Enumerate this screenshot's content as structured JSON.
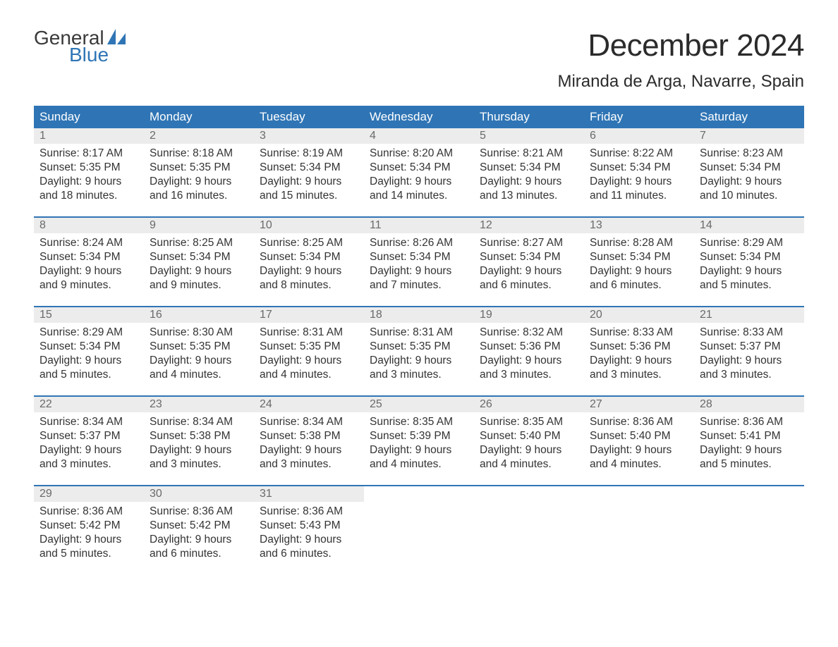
{
  "logo": {
    "word1": "General",
    "word2": "Blue"
  },
  "title": "December 2024",
  "location": "Miranda de Arga, Navarre, Spain",
  "style": {
    "header_bg": "#2f75b5",
    "header_fg": "#ffffff",
    "daynum_bg": "#ececec",
    "daynum_fg": "#6a6a6a",
    "body_fg": "#333333",
    "sep_color": "#2f75b5",
    "logo_gray": "#3a3a3a",
    "logo_blue": "#2f75b5",
    "title_fontsize": 44,
    "location_fontsize": 24,
    "header_fontsize": 17,
    "cell_fontsize": 15.5,
    "page_bg": "#ffffff"
  },
  "day_headers": [
    "Sunday",
    "Monday",
    "Tuesday",
    "Wednesday",
    "Thursday",
    "Friday",
    "Saturday"
  ],
  "weeks": [
    [
      {
        "n": "1",
        "sunrise": "Sunrise: 8:17 AM",
        "sunset": "Sunset: 5:35 PM",
        "d1": "Daylight: 9 hours",
        "d2": "and 18 minutes."
      },
      {
        "n": "2",
        "sunrise": "Sunrise: 8:18 AM",
        "sunset": "Sunset: 5:35 PM",
        "d1": "Daylight: 9 hours",
        "d2": "and 16 minutes."
      },
      {
        "n": "3",
        "sunrise": "Sunrise: 8:19 AM",
        "sunset": "Sunset: 5:34 PM",
        "d1": "Daylight: 9 hours",
        "d2": "and 15 minutes."
      },
      {
        "n": "4",
        "sunrise": "Sunrise: 8:20 AM",
        "sunset": "Sunset: 5:34 PM",
        "d1": "Daylight: 9 hours",
        "d2": "and 14 minutes."
      },
      {
        "n": "5",
        "sunrise": "Sunrise: 8:21 AM",
        "sunset": "Sunset: 5:34 PM",
        "d1": "Daylight: 9 hours",
        "d2": "and 13 minutes."
      },
      {
        "n": "6",
        "sunrise": "Sunrise: 8:22 AM",
        "sunset": "Sunset: 5:34 PM",
        "d1": "Daylight: 9 hours",
        "d2": "and 11 minutes."
      },
      {
        "n": "7",
        "sunrise": "Sunrise: 8:23 AM",
        "sunset": "Sunset: 5:34 PM",
        "d1": "Daylight: 9 hours",
        "d2": "and 10 minutes."
      }
    ],
    [
      {
        "n": "8",
        "sunrise": "Sunrise: 8:24 AM",
        "sunset": "Sunset: 5:34 PM",
        "d1": "Daylight: 9 hours",
        "d2": "and 9 minutes."
      },
      {
        "n": "9",
        "sunrise": "Sunrise: 8:25 AM",
        "sunset": "Sunset: 5:34 PM",
        "d1": "Daylight: 9 hours",
        "d2": "and 9 minutes."
      },
      {
        "n": "10",
        "sunrise": "Sunrise: 8:25 AM",
        "sunset": "Sunset: 5:34 PM",
        "d1": "Daylight: 9 hours",
        "d2": "and 8 minutes."
      },
      {
        "n": "11",
        "sunrise": "Sunrise: 8:26 AM",
        "sunset": "Sunset: 5:34 PM",
        "d1": "Daylight: 9 hours",
        "d2": "and 7 minutes."
      },
      {
        "n": "12",
        "sunrise": "Sunrise: 8:27 AM",
        "sunset": "Sunset: 5:34 PM",
        "d1": "Daylight: 9 hours",
        "d2": "and 6 minutes."
      },
      {
        "n": "13",
        "sunrise": "Sunrise: 8:28 AM",
        "sunset": "Sunset: 5:34 PM",
        "d1": "Daylight: 9 hours",
        "d2": "and 6 minutes."
      },
      {
        "n": "14",
        "sunrise": "Sunrise: 8:29 AM",
        "sunset": "Sunset: 5:34 PM",
        "d1": "Daylight: 9 hours",
        "d2": "and 5 minutes."
      }
    ],
    [
      {
        "n": "15",
        "sunrise": "Sunrise: 8:29 AM",
        "sunset": "Sunset: 5:34 PM",
        "d1": "Daylight: 9 hours",
        "d2": "and 5 minutes."
      },
      {
        "n": "16",
        "sunrise": "Sunrise: 8:30 AM",
        "sunset": "Sunset: 5:35 PM",
        "d1": "Daylight: 9 hours",
        "d2": "and 4 minutes."
      },
      {
        "n": "17",
        "sunrise": "Sunrise: 8:31 AM",
        "sunset": "Sunset: 5:35 PM",
        "d1": "Daylight: 9 hours",
        "d2": "and 4 minutes."
      },
      {
        "n": "18",
        "sunrise": "Sunrise: 8:31 AM",
        "sunset": "Sunset: 5:35 PM",
        "d1": "Daylight: 9 hours",
        "d2": "and 3 minutes."
      },
      {
        "n": "19",
        "sunrise": "Sunrise: 8:32 AM",
        "sunset": "Sunset: 5:36 PM",
        "d1": "Daylight: 9 hours",
        "d2": "and 3 minutes."
      },
      {
        "n": "20",
        "sunrise": "Sunrise: 8:33 AM",
        "sunset": "Sunset: 5:36 PM",
        "d1": "Daylight: 9 hours",
        "d2": "and 3 minutes."
      },
      {
        "n": "21",
        "sunrise": "Sunrise: 8:33 AM",
        "sunset": "Sunset: 5:37 PM",
        "d1": "Daylight: 9 hours",
        "d2": "and 3 minutes."
      }
    ],
    [
      {
        "n": "22",
        "sunrise": "Sunrise: 8:34 AM",
        "sunset": "Sunset: 5:37 PM",
        "d1": "Daylight: 9 hours",
        "d2": "and 3 minutes."
      },
      {
        "n": "23",
        "sunrise": "Sunrise: 8:34 AM",
        "sunset": "Sunset: 5:38 PM",
        "d1": "Daylight: 9 hours",
        "d2": "and 3 minutes."
      },
      {
        "n": "24",
        "sunrise": "Sunrise: 8:34 AM",
        "sunset": "Sunset: 5:38 PM",
        "d1": "Daylight: 9 hours",
        "d2": "and 3 minutes."
      },
      {
        "n": "25",
        "sunrise": "Sunrise: 8:35 AM",
        "sunset": "Sunset: 5:39 PM",
        "d1": "Daylight: 9 hours",
        "d2": "and 4 minutes."
      },
      {
        "n": "26",
        "sunrise": "Sunrise: 8:35 AM",
        "sunset": "Sunset: 5:40 PM",
        "d1": "Daylight: 9 hours",
        "d2": "and 4 minutes."
      },
      {
        "n": "27",
        "sunrise": "Sunrise: 8:36 AM",
        "sunset": "Sunset: 5:40 PM",
        "d1": "Daylight: 9 hours",
        "d2": "and 4 minutes."
      },
      {
        "n": "28",
        "sunrise": "Sunrise: 8:36 AM",
        "sunset": "Sunset: 5:41 PM",
        "d1": "Daylight: 9 hours",
        "d2": "and 5 minutes."
      }
    ],
    [
      {
        "n": "29",
        "sunrise": "Sunrise: 8:36 AM",
        "sunset": "Sunset: 5:42 PM",
        "d1": "Daylight: 9 hours",
        "d2": "and 5 minutes."
      },
      {
        "n": "30",
        "sunrise": "Sunrise: 8:36 AM",
        "sunset": "Sunset: 5:42 PM",
        "d1": "Daylight: 9 hours",
        "d2": "and 6 minutes."
      },
      {
        "n": "31",
        "sunrise": "Sunrise: 8:36 AM",
        "sunset": "Sunset: 5:43 PM",
        "d1": "Daylight: 9 hours",
        "d2": "and 6 minutes."
      },
      null,
      null,
      null,
      null
    ]
  ]
}
